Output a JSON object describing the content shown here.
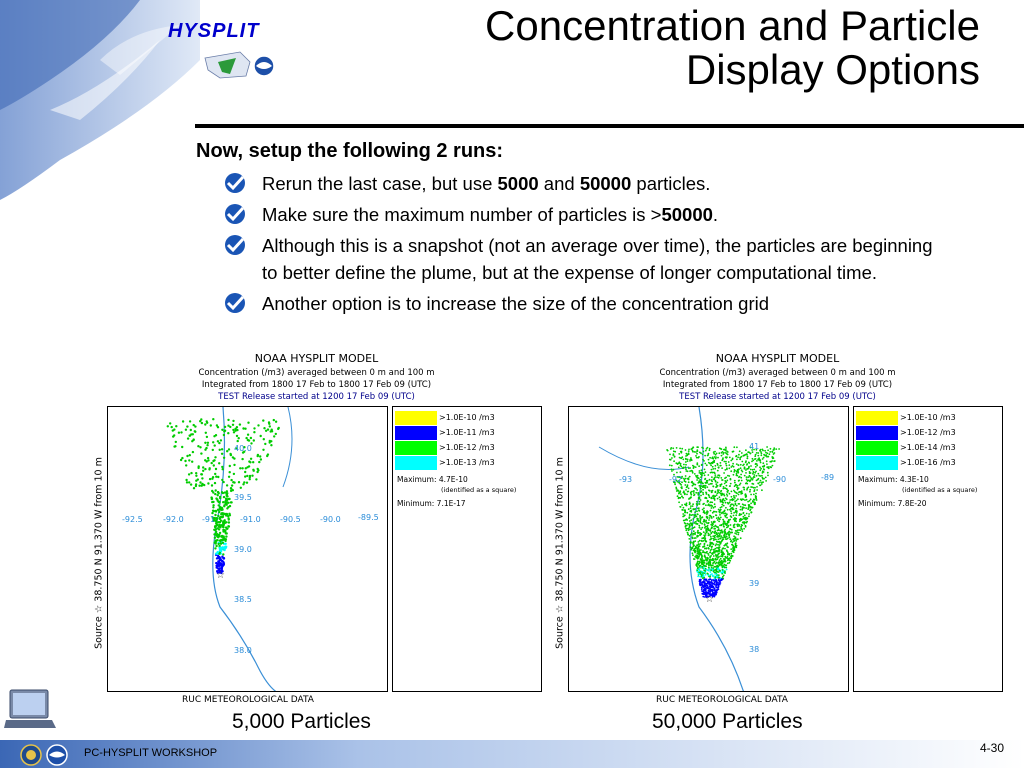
{
  "logo_text": "HYSPLIT",
  "title_line1": "Concentration and Particle",
  "title_line2": "Display Options",
  "heading": "Now, setup the following 2 runs:",
  "bullets": [
    {
      "pre": "Rerun the last case, but use ",
      "b1": "5000",
      "mid": " and ",
      "b2": "50000",
      "post": " particles."
    },
    {
      "pre": "Make sure the maximum number of particles is >",
      "b1": "50000",
      "post": "."
    },
    {
      "text": "Although this is a snapshot (not an average over time), the particles are beginning to better define the plume, but at the expense of longer computational time."
    },
    {
      "text": "Another option is to increase the size of the concentration grid"
    }
  ],
  "panels": [
    {
      "header1": "NOAA HYSPLIT MODEL",
      "header2": "Concentration  (/m3) averaged between     0 m and   100 m",
      "header3": "Integrated from 1800 17 Feb to 1800 17 Feb 09 (UTC)",
      "header4": "TEST Release started at 1200 17 Feb 09 (UTC)",
      "ylabel": "Source ☆  38.750  N  91.370  W       from     10 m",
      "footer": "RUC METEOROLOGICAL DATA",
      "legend": [
        {
          "label": ">1.0E-10 /m3",
          "color": "#ffff00"
        },
        {
          "label": ">1.0E-11 /m3",
          "color": "#0000ff"
        },
        {
          "label": ">1.0E-12 /m3",
          "color": "#00ff00"
        },
        {
          "label": ">1.0E-13 /m3",
          "color": "#00ffff"
        }
      ],
      "maximum": "Maximum: 4.7E-10",
      "identified": "(identified as a square)",
      "minimum": "Minimum: 7.1E-17",
      "lat_labels": [
        "40.0",
        "39.5",
        "39.0",
        "38.5",
        "38.0"
      ],
      "lon_labels": [
        "-92.5",
        "-92.0",
        "-91",
        "-91.0",
        "-90.5",
        "-90.0",
        "-89.5"
      ],
      "caption": "5,000 Particles"
    },
    {
      "header1": "NOAA HYSPLIT MODEL",
      "header2": "Concentration  (/m3) averaged between     0 m and   100 m",
      "header3": "Integrated from 1800 17 Feb to 1800 17 Feb 09 (UTC)",
      "header4": "TEST Release started at 1200 17 Feb 09 (UTC)",
      "ylabel": "Source ☆  38.750  N  91.370  W       from     10 m",
      "footer": "RUC METEOROLOGICAL DATA",
      "legend": [
        {
          "label": ">1.0E-10 /m3",
          "color": "#ffff00"
        },
        {
          "label": ">1.0E-12 /m3",
          "color": "#0000ff"
        },
        {
          "label": ">1.0E-14 /m3",
          "color": "#00ff00"
        },
        {
          "label": ">1.0E-16 /m3",
          "color": "#00ffff"
        }
      ],
      "maximum": "Maximum: 4.3E-10",
      "identified": "(identified as a square)",
      "minimum": "Minimum: 7.8E-20",
      "lat_labels": [
        "41",
        "39",
        "38"
      ],
      "lon_labels": [
        "-93",
        "-92",
        "-90",
        "-89"
      ],
      "caption": "50,000 Particles"
    }
  ],
  "footer_text": "PC-HYSPLIT WORKSHOP",
  "page_number": "4-30",
  "colors": {
    "accent_blue": "#1e5bb8",
    "particle_green": "#00dd00",
    "particle_blue": "#0000ff",
    "map_line": "#3a8fd6"
  },
  "icons": [
    "check-bullet-icon",
    "noaa-logo-icon",
    "doc-seal-icon",
    "laptop-icon",
    "bird-swoosh-icon"
  ]
}
